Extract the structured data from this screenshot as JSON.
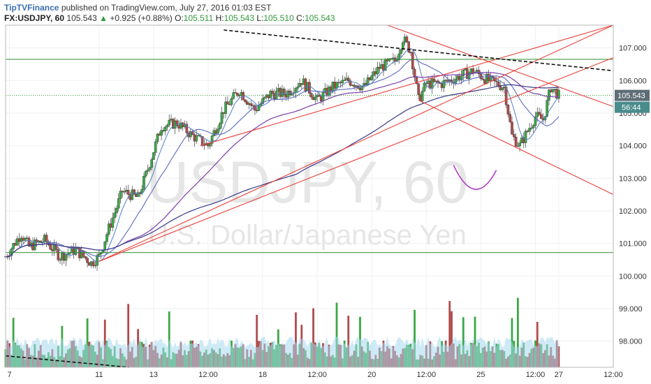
{
  "header": {
    "brand": "TipTVFinance",
    "published_text": "published on TradingView.com, July 27, 2016 01:03 EST",
    "symbol": "FX:USDJPY, 60",
    "last": "105.543",
    "change_arrow": "▲",
    "change": "+0.925 (+0.88%)",
    "open_label": "O:",
    "open": "105.511",
    "high_label": "H:",
    "high": "105.543",
    "low_label": "L:",
    "low": "105.510",
    "close_label": "C:",
    "close": "105.543"
  },
  "watermark": {
    "symbol_text": "USDJPY, 60",
    "name_text": "U.S. Dollar/Japanese Yen"
  },
  "price_tags": {
    "last_price": "105.543",
    "countdown": "56:44"
  },
  "colors": {
    "bull": "#3aa845",
    "bear": "#b04a4a",
    "trend": "#e8403a",
    "level": "#2e8b2e",
    "ma_blue": "#5b6abf",
    "ma_purple": "#7a3fa8",
    "volume_ma": "#a8d8f0",
    "price_tag": "#5d6d75",
    "countdown_tag": "#4a8c8c"
  },
  "chart_data": {
    "type": "candlestick",
    "title": "USDJPY, 60",
    "subtitle": "U.S. Dollar/Japanese Yen",
    "y_ticks": [
      "107.000",
      "106.000",
      "105.000",
      "104.000",
      "103.000",
      "102.000",
      "101.000",
      "100.000",
      "99.000",
      "98.000"
    ],
    "x_ticks": [
      "7",
      "11",
      "13",
      "12:00",
      "18",
      "12:00",
      "20",
      "12:00",
      "25",
      "12:00",
      "27",
      "12:00"
    ],
    "ylim": [
      97.2,
      107.7
    ],
    "last_price": 105.543,
    "price_path": [
      [
        0,
        100.6
      ],
      [
        2,
        101.3
      ],
      [
        3,
        100.9
      ],
      [
        5,
        101.1
      ],
      [
        7,
        100.6
      ],
      [
        9,
        100.8
      ],
      [
        11,
        100.4
      ],
      [
        12,
        100.6
      ],
      [
        13,
        101.3
      ],
      [
        15,
        102.6
      ],
      [
        17,
        102.4
      ],
      [
        18,
        103.1
      ],
      [
        20,
        104.6
      ],
      [
        22,
        104.7
      ],
      [
        24,
        104.3
      ],
      [
        26,
        104.0
      ],
      [
        28,
        105.1
      ],
      [
        30,
        105.7
      ],
      [
        32,
        105.1
      ],
      [
        34,
        105.6
      ],
      [
        36,
        105.6
      ],
      [
        38,
        106.0
      ],
      [
        40,
        105.4
      ],
      [
        42,
        105.8
      ],
      [
        44,
        106.0
      ],
      [
        46,
        105.8
      ],
      [
        48,
        106.4
      ],
      [
        50,
        106.6
      ],
      [
        51,
        107.3
      ],
      [
        52,
        106.9
      ],
      [
        53,
        105.4
      ],
      [
        54,
        105.9
      ],
      [
        56,
        105.9
      ],
      [
        58,
        106.1
      ],
      [
        60,
        106.3
      ],
      [
        62,
        106.0
      ],
      [
        64,
        105.8
      ],
      [
        65,
        104.3
      ],
      [
        66,
        104.0
      ],
      [
        68,
        104.9
      ],
      [
        69,
        104.8
      ],
      [
        70,
        105.8
      ],
      [
        71,
        105.54
      ]
    ],
    "levels": [
      106.65,
      100.72
    ],
    "x_labels_positions": {
      "7": 0.5,
      "11": 12,
      "13": 19,
      "12:00a": 26,
      "18": 33,
      "12:00b": 40,
      "20": 47,
      "12:00c": 54,
      "25": 61,
      "12:00d": 68,
      "27": 71,
      "12:00e": 78
    }
  }
}
